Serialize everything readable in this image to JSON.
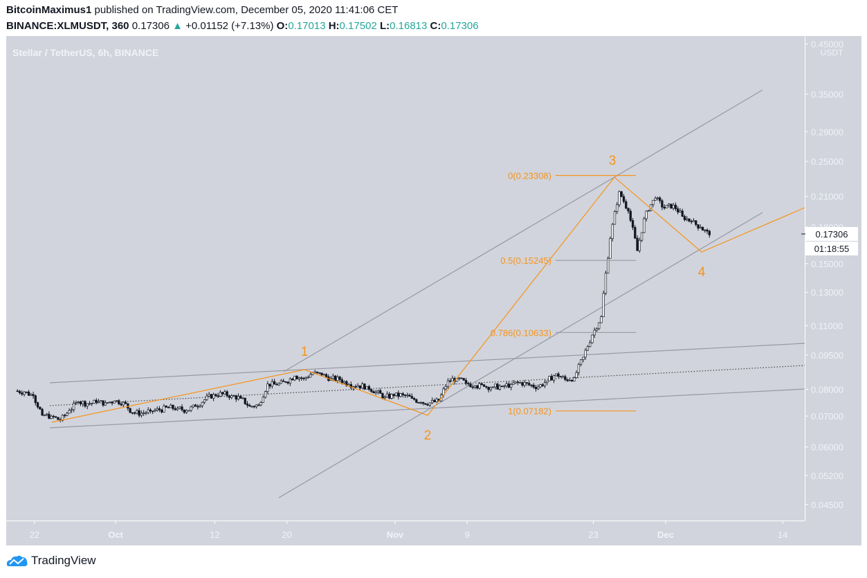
{
  "header": {
    "author": "BitcoinMaximus1",
    "published": "published on TradingView.com, December 05, 2020 11:41:06 CET",
    "symbol": "BINANCE:XLMUSDT, 360",
    "last": "0.17306",
    "change": "+0.01152 (+7.13%)",
    "o_label": "O:",
    "o": "0.17013",
    "h_label": "H:",
    "h": "0.17502",
    "l_label": "L:",
    "l": "0.16813",
    "c_label": "C:",
    "c": "0.17306"
  },
  "colors": {
    "background": "#d1d4dc",
    "up": "#ffffff",
    "down": "#131722",
    "annotation": "#f7931a",
    "trendline": "#9598a1",
    "change": "#26a69a"
  },
  "chart_data": {
    "type": "candlestick",
    "title": "Stellar / TetherUS, 6h, BINANCE",
    "currency": "USDT",
    "y_scale": "log",
    "ylim": [
      0.042,
      0.47
    ],
    "y_ticks": [
      "0.45000",
      "0.35000",
      "0.29000",
      "0.25000",
      "0.21000",
      "0.18000",
      "0.15000",
      "0.13000",
      "0.11000",
      "0.09500",
      "0.08000",
      "0.07000",
      "0.06000",
      "0.05200",
      "0.04500"
    ],
    "x_ticks": [
      "22",
      "Oct",
      "12",
      "20",
      "Nov",
      "9",
      "23",
      "Dec",
      "14"
    ],
    "dates": [
      "09-20",
      "09-21",
      "09-22",
      "09-23",
      "09-24",
      "09-25",
      "09-26",
      "09-27",
      "09-28",
      "09-29",
      "09-30",
      "10-01",
      "10-02",
      "10-03",
      "10-04",
      "10-05",
      "10-06",
      "10-07",
      "10-08",
      "10-09",
      "10-10",
      "10-11",
      "10-12",
      "10-13",
      "10-14",
      "10-15",
      "10-16",
      "10-17",
      "10-18",
      "10-19",
      "10-20",
      "10-21",
      "10-22",
      "10-23",
      "10-24",
      "10-25",
      "10-26",
      "10-27",
      "10-28",
      "10-29",
      "10-30",
      "10-31",
      "11-01",
      "11-02",
      "11-03",
      "11-04",
      "11-05",
      "11-06",
      "11-07",
      "11-08",
      "11-09",
      "11-10",
      "11-11",
      "11-12",
      "11-13",
      "11-14",
      "11-15",
      "11-16",
      "11-17",
      "11-18",
      "11-19",
      "11-20",
      "11-21",
      "11-22",
      "11-23",
      "11-24",
      "11-25",
      "11-26",
      "11-27",
      "11-28",
      "11-29",
      "11-30",
      "12-01",
      "12-02",
      "12-03",
      "12-04",
      "12-05"
    ],
    "close": [
      0.079,
      0.0775,
      0.0703,
      0.07,
      0.0685,
      0.072,
      0.0752,
      0.0745,
      0.075,
      0.0748,
      0.0755,
      0.075,
      0.0712,
      0.071,
      0.0718,
      0.0722,
      0.073,
      0.0728,
      0.072,
      0.0735,
      0.076,
      0.078,
      0.0782,
      0.0775,
      0.0765,
      0.0735,
      0.074,
      0.0822,
      0.0818,
      0.083,
      0.0855,
      0.0845,
      0.0868,
      0.086,
      0.0845,
      0.084,
      0.082,
      0.0815,
      0.0812,
      0.079,
      0.077,
      0.0775,
      0.0778,
      0.0765,
      0.075,
      0.0748,
      0.0755,
      0.0835,
      0.0845,
      0.0825,
      0.0815,
      0.0812,
      0.081,
      0.0812,
      0.082,
      0.0828,
      0.0818,
      0.081,
      0.0835,
      0.0865,
      0.084,
      0.0848,
      0.094,
      0.105,
      0.115,
      0.17,
      0.215,
      0.195,
      0.16,
      0.195,
      0.208,
      0.198,
      0.201,
      0.19,
      0.185,
      0.18,
      0.1731
    ],
    "last_price_label": "0.17306",
    "countdown": "01:18:55",
    "fib_levels": [
      {
        "label": "0(0.23308)",
        "value": 0.23308
      },
      {
        "label": "0.5(0.15245)",
        "value": 0.15245
      },
      {
        "label": "0.786(0.10633)",
        "value": 0.10633
      },
      {
        "label": "1(0.07182)",
        "value": 0.07182
      }
    ],
    "wave_labels": [
      "1",
      "2",
      "3",
      "4"
    ]
  },
  "footer": {
    "brand": "TradingView"
  }
}
